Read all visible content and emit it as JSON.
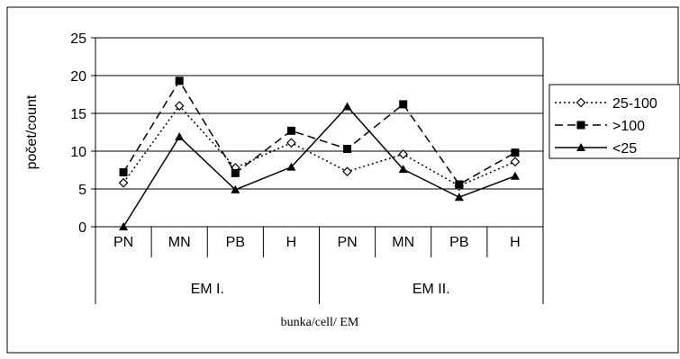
{
  "chart_data": {
    "type": "line",
    "title": "",
    "ylabel": "počet/count",
    "xlabel": "bunka/cell/ EM",
    "ylim": [
      0,
      25
    ],
    "y_ticks": [
      0,
      5,
      10,
      15,
      20,
      25
    ],
    "grid": true,
    "legend_position": "right",
    "categories": [
      "PN",
      "MN",
      "PB",
      "H",
      "PN",
      "MN",
      "PB",
      "H"
    ],
    "groups": [
      {
        "label": "EM I.",
        "span": 4
      },
      {
        "label": "EM II.",
        "span": 4
      }
    ],
    "series": [
      {
        "name": "25-100",
        "values": [
          5.8,
          16,
          7.8,
          11.1,
          7.3,
          9.6,
          5.4,
          8.6
        ],
        "marker": "diamond-open",
        "line": "dotted",
        "color": "#000000"
      },
      {
        "name": ">100",
        "values": [
          7.2,
          19.3,
          7.1,
          12.7,
          10.3,
          16.2,
          5.6,
          9.8
        ],
        "marker": "square-filled",
        "line": "dashed",
        "color": "#000000"
      },
      {
        "name": "<25",
        "values": [
          0,
          11.9,
          4.9,
          7.9,
          15.9,
          7.6,
          3.9,
          6.7
        ],
        "marker": "triangle-filled",
        "line": "solid",
        "color": "#000000"
      }
    ]
  }
}
